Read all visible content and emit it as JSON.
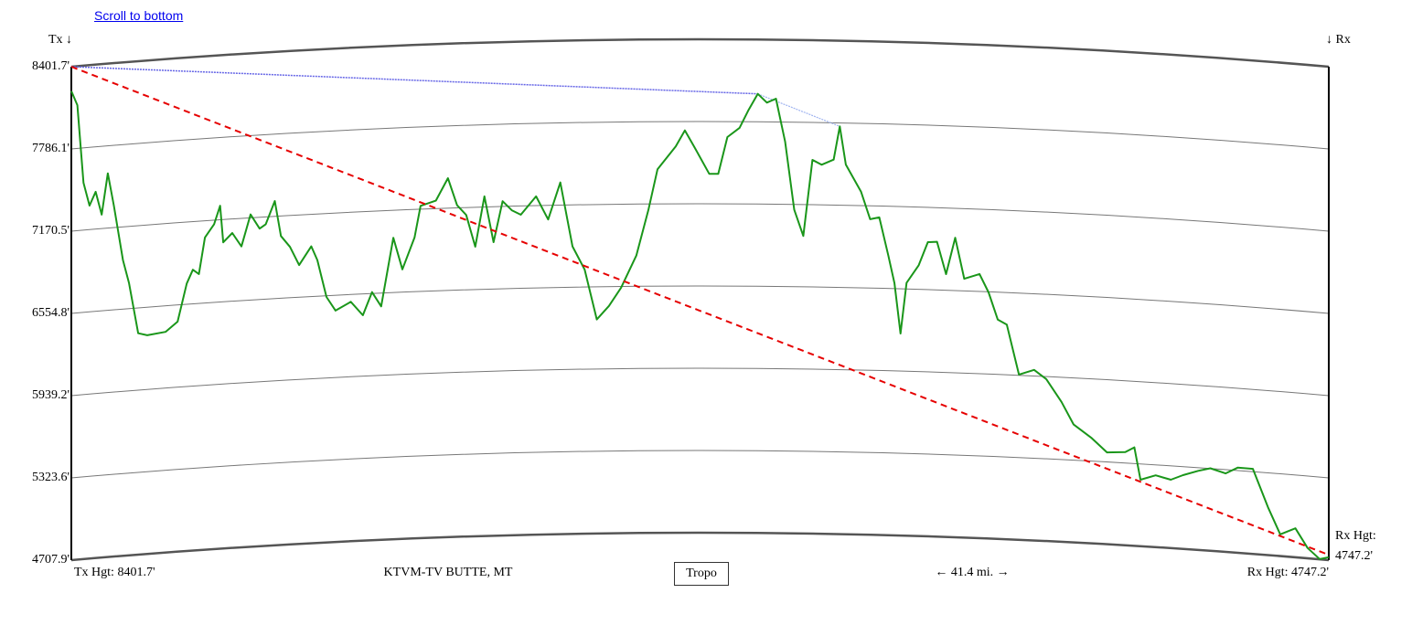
{
  "scroll_link": "Scroll to bottom",
  "chart_data": {
    "type": "line",
    "title": "KTVM-TV BUTTE, MT",
    "tx_marker": "Tx ↓",
    "rx_marker": "↓ Rx",
    "tx_label": "Tx Hgt: 8401.7'",
    "rx_label": "Rx Hgt: 4747.2'",
    "rx_side_label": [
      "Rx Hgt:",
      "4747.2'"
    ],
    "distance_label": "← 41.4 mi. →",
    "button": "Tropo",
    "tx_height": 8401.7,
    "rx_height": 4747.2,
    "los_color": "#e60000",
    "horizon_color": "#6464e6",
    "shadow_color": "#a0b4f0",
    "xlim": [
      0,
      41.4
    ],
    "ylim": [
      4707.9,
      8401.7
    ],
    "yticks": [
      {
        "value": 8401.7,
        "label": "8401.7'"
      },
      {
        "value": 7786.1,
        "label": "7786.1'"
      },
      {
        "value": 7170.5,
        "label": "7170.5'"
      },
      {
        "value": 6554.8,
        "label": "6554.8'"
      },
      {
        "value": 5939.2,
        "label": "5939.2'"
      },
      {
        "value": 5323.6,
        "label": "5323.6'"
      },
      {
        "value": 4707.9,
        "label": "4707.9'"
      }
    ],
    "x": [
      0,
      0.2,
      0.4,
      0.6,
      0.8,
      1.0,
      1.2,
      1.4,
      1.7,
      1.9,
      2.2,
      2.5,
      3.1,
      3.5,
      3.8,
      4.0,
      4.2,
      4.4,
      4.7,
      4.9,
      5.0,
      5.3,
      5.6,
      5.9,
      6.2,
      6.4,
      6.7,
      6.9,
      7.2,
      7.5,
      7.9,
      8.1,
      8.4,
      8.7,
      9.2,
      9.6,
      9.9,
      10.2,
      10.6,
      10.9,
      11.3,
      11.5,
      12.0,
      12.4,
      12.7,
      13.0,
      13.3,
      13.6,
      13.9,
      14.2,
      14.5,
      14.8,
      15.3,
      15.7,
      16.1,
      16.5,
      16.9,
      17.3,
      17.7,
      18.1,
      18.6,
      19.0,
      19.3,
      19.9,
      20.2,
      20.5,
      21.0,
      21.3,
      21.6,
      22.0,
      22.3,
      22.6,
      22.9,
      23.2,
      23.5,
      23.8,
      24.1,
      24.4,
      24.7,
      25.1,
      25.3,
      25.5,
      26.0,
      26.3,
      26.6,
      26.9,
      27.1,
      27.3,
      27.5,
      27.9,
      28.2,
      28.5,
      28.8,
      29.1,
      29.4,
      29.9,
      30.2,
      30.5,
      30.8,
      31.2,
      31.7,
      32.1,
      32.6,
      33.0,
      33.6,
      34.1,
      34.7,
      35.0,
      35.2,
      35.7,
      36.2,
      36.6,
      37.1,
      37.5,
      38.0,
      38.4,
      38.9,
      39.4,
      39.8,
      40.3,
      40.7,
      41.1,
      41.4
    ],
    "series": [
      {
        "color": "#1a961a",
        "values": [
          8220,
          8110,
          7525,
          7350,
          7450,
          7275,
          7580,
          7335,
          6920,
          6745,
          6365,
          6345,
          6360,
          6430,
          6710,
          6810,
          6775,
          7045,
          7140,
          7275,
          7000,
          7065,
          6960,
          7195,
          7085,
          7115,
          7285,
          7020,
          6935,
          6795,
          6930,
          6825,
          6545,
          6440,
          6500,
          6395,
          6565,
          6455,
          6965,
          6725,
          6960,
          7195,
          7230,
          7395,
          7190,
          7115,
          6875,
          7250,
          6905,
          7210,
          7140,
          7105,
          7240,
          7065,
          7340,
          6860,
          6685,
          6310,
          6410,
          6545,
          6785,
          7125,
          7430,
          7600,
          7720,
          7600,
          7395,
          7395,
          7670,
          7740,
          7875,
          7995,
          7930,
          7960,
          7640,
          7130,
          6935,
          7505,
          7470,
          7510,
          7760,
          7475,
          7275,
          7070,
          7085,
          6800,
          6595,
          6220,
          6600,
          6735,
          6910,
          6915,
          6675,
          6950,
          6645,
          6685,
          6550,
          6350,
          6315,
          5945,
          5985,
          5920,
          5755,
          5590,
          5495,
          5395,
          5405,
          5445,
          5205,
          5245,
          5220,
          5260,
          5300,
          5325,
          5295,
          5345,
          5345,
          5065,
          4870,
          4925,
          4785,
          4710,
          4730
        ]
      }
    ]
  }
}
